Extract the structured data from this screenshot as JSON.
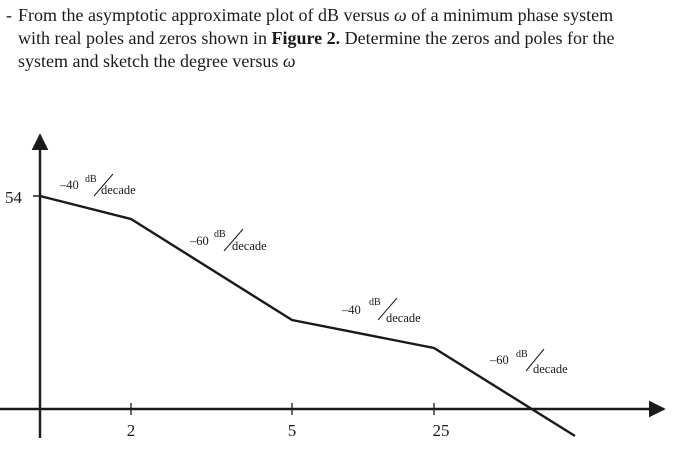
{
  "problem": {
    "bullet": "-",
    "line1_a": "From the asymptotic approximate plot of dB versus ",
    "omega_symbol": "ω",
    "line1_b": " of a minimum phase system",
    "line2_a": "with real poles and zeros shown in ",
    "figure_ref": "Figure 2.",
    "line2_b": " Determine the zeros and poles for the",
    "line3_a": "system and sketch the degree versus "
  },
  "diagram": {
    "y_tick_label": "54",
    "x_tick_labels": [
      "2",
      "5",
      "25"
    ],
    "slope_labels": [
      {
        "coef": "–40",
        "num": "dB",
        "den": "decade"
      },
      {
        "coef": "–60",
        "num": "dB",
        "den": "decade"
      },
      {
        "coef": "–40",
        "num": "dB",
        "den": "decade"
      },
      {
        "coef": "–60",
        "num": "dB",
        "den": "decade"
      }
    ],
    "line_color": "#1a1a1a"
  }
}
